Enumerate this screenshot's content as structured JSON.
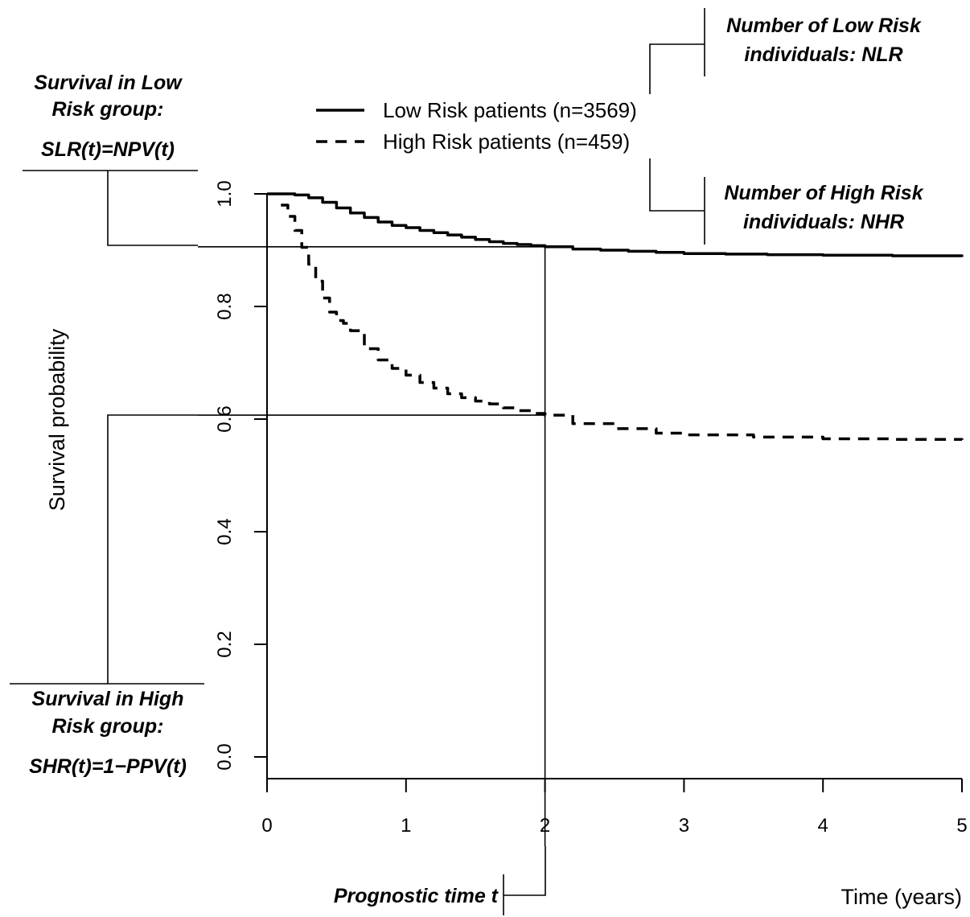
{
  "chart_data": {
    "type": "line",
    "title": "",
    "xlabel": "Time (years)",
    "ylabel": "Survival probability",
    "xlim": [
      0,
      5
    ],
    "ylim": [
      0,
      1
    ],
    "x_ticks": [
      0,
      1,
      2,
      3,
      4,
      5
    ],
    "x_tick_labels": [
      "0",
      "1",
      "2",
      "3",
      "4",
      "5"
    ],
    "y_ticks": [
      0,
      0.2,
      0.4,
      0.6,
      0.8,
      1.0
    ],
    "y_tick_labels": [
      "0.0",
      "0.2",
      "0.4",
      "0.6",
      "0.8",
      "1.0"
    ],
    "grid": false,
    "legend_position": "top-center",
    "series": [
      {
        "name": "Low Risk patients (n=3569)",
        "line_style": "solid",
        "color": "#000000",
        "x": [
          0,
          0.1,
          0.2,
          0.3,
          0.4,
          0.5,
          0.6,
          0.7,
          0.8,
          0.9,
          1.0,
          1.1,
          1.2,
          1.3,
          1.4,
          1.5,
          1.6,
          1.7,
          1.8,
          1.9,
          2.0,
          2.2,
          2.4,
          2.6,
          2.8,
          3.0,
          3.3,
          3.6,
          4.0,
          4.5,
          5.0
        ],
        "y": [
          1.0,
          1.0,
          0.998,
          0.993,
          0.985,
          0.975,
          0.966,
          0.958,
          0.95,
          0.944,
          0.94,
          0.935,
          0.931,
          0.927,
          0.923,
          0.919,
          0.915,
          0.912,
          0.91,
          0.908,
          0.906,
          0.902,
          0.9,
          0.898,
          0.896,
          0.894,
          0.893,
          0.892,
          0.891,
          0.89,
          0.888
        ]
      },
      {
        "name": "High Risk patients (n=459)",
        "line_style": "dashed",
        "color": "#000000",
        "x": [
          0.1,
          0.15,
          0.2,
          0.25,
          0.3,
          0.35,
          0.4,
          0.45,
          0.5,
          0.55,
          0.6,
          0.7,
          0.8,
          0.9,
          1.0,
          1.1,
          1.2,
          1.3,
          1.4,
          1.5,
          1.6,
          1.7,
          1.8,
          1.9,
          2.0,
          2.2,
          2.5,
          2.8,
          3.0,
          3.5,
          4.0,
          4.5,
          5.0
        ],
        "y": [
          0.98,
          0.96,
          0.935,
          0.905,
          0.875,
          0.845,
          0.815,
          0.79,
          0.775,
          0.77,
          0.757,
          0.725,
          0.705,
          0.69,
          0.678,
          0.665,
          0.655,
          0.645,
          0.638,
          0.632,
          0.627,
          0.62,
          0.615,
          0.61,
          0.607,
          0.592,
          0.583,
          0.575,
          0.572,
          0.568,
          0.565,
          0.564,
          0.563
        ]
      }
    ],
    "guide_lines": {
      "prognostic_time": 2,
      "low_risk_survival_at_t": 0.906,
      "high_risk_survival_at_t": 0.607
    },
    "annotations": {
      "slr": [
        "Survival in Low",
        "Risk group:",
        "SLR(t)=NPV(t)"
      ],
      "shr": [
        "Survival in High",
        "Risk group:",
        "SHR(t)=1−PPV(t)"
      ],
      "nlr": [
        "Number of Low Risk",
        "individuals: NLR"
      ],
      "nhr": [
        "Number of High Risk",
        "individuals: NHR"
      ],
      "prognostic_time": "Prognostic time t"
    }
  }
}
